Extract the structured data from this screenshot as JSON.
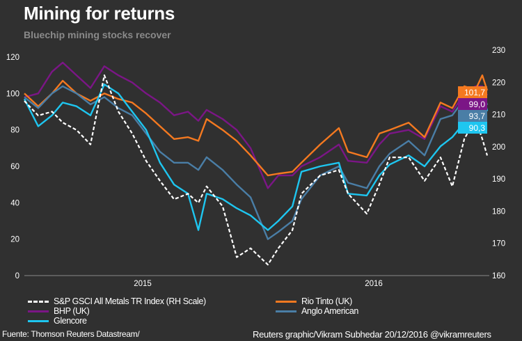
{
  "header": {
    "title": "Mining for returns",
    "subtitle": "Bluechip mining stocks recover"
  },
  "footer": {
    "source": "Fuente: Thomson Reuters Datastream/",
    "credit": "Reuters graphic/Vikram Subhedar 20/12/2016  @vikramreuters"
  },
  "chart_data": {
    "type": "line",
    "title": "Mining for returns",
    "subtitle": "Bluechip mining stocks recover",
    "xlabel": "",
    "ylabel": "",
    "x_unit": "decimal year",
    "xlim": [
      2014.988,
      2016.991
    ],
    "x_ticks": [
      {
        "value": 2015.5,
        "label": "2015"
      },
      {
        "value": 2016.5,
        "label": "2016"
      }
    ],
    "ylim_left": [
      0,
      120
    ],
    "y_ticks_left": [
      0,
      20,
      40,
      60,
      80,
      100,
      120
    ],
    "ylim_right": [
      160,
      230
    ],
    "y_ticks_right": [
      160,
      170,
      180,
      190,
      200,
      210,
      220,
      230
    ],
    "grid": false,
    "legend_position": "bottom",
    "x": [
      2014.988,
      2015.048,
      2015.108,
      2015.154,
      2015.214,
      2015.274,
      2015.334,
      2015.395,
      2015.455,
      2015.515,
      2015.575,
      2015.636,
      2015.696,
      2015.741,
      2015.777,
      2015.846,
      2015.907,
      2015.967,
      2016.042,
      2016.087,
      2016.148,
      2016.187,
      2016.268,
      2016.349,
      2016.389,
      2016.47,
      2016.524,
      2016.569,
      2016.651,
      2016.72,
      2016.789,
      2016.84,
      2016.892,
      2016.94,
      2016.97,
      2016.991
    ],
    "series": [
      {
        "name": "S&P GSCI All Metals TR Index (RH Scale)",
        "axis": "right",
        "color": "#ffffff",
        "dashed": true,
        "values": [
          214.2,
          209.7,
          210.9,
          207.5,
          205.2,
          200.7,
          222.2,
          210.9,
          204.1,
          195.6,
          189.4,
          183.7,
          185.4,
          182.6,
          187.7,
          181.5,
          165.7,
          168.5,
          163.4,
          168.5,
          174.1,
          185.4,
          191.1,
          192.8,
          185.4,
          179.2,
          188.3,
          196.7,
          196.7,
          189.4,
          196.7,
          187.7,
          202.4,
          208.6,
          202.4,
          197.3
        ]
      },
      {
        "name": "BHP (UK)",
        "axis": "left",
        "color": "#7b1686",
        "values": [
          98,
          100,
          112,
          117,
          110,
          103,
          115,
          110,
          106,
          100,
          95,
          88,
          90,
          85,
          91,
          86,
          80,
          70,
          48,
          55,
          55,
          60,
          65,
          72,
          63,
          62,
          72,
          78,
          80,
          75,
          93,
          90,
          100,
          104,
          104,
          99.0
        ]
      },
      {
        "name": "Glencore",
        "axis": "left",
        "color": "#1ec6f0",
        "values": [
          97,
          82,
          88,
          95,
          93,
          88,
          105,
          100,
          90,
          80,
          62,
          50,
          45,
          25,
          45,
          42,
          37,
          33,
          25,
          30,
          38,
          57,
          60,
          62,
          45,
          44,
          55,
          61,
          66,
          60,
          71,
          76,
          84,
          92,
          102,
          90.3
        ]
      },
      {
        "name": "Rio Tinto (UK)",
        "axis": "left",
        "color": "#f47920",
        "values": [
          100,
          93,
          100,
          107,
          100,
          96,
          100,
          97,
          95,
          89,
          82,
          75,
          76,
          74,
          86,
          80,
          74,
          66,
          55,
          56,
          57,
          62,
          72,
          81,
          68,
          65,
          78,
          80,
          84,
          76,
          95,
          92,
          104,
          102,
          110,
          101.7
        ]
      },
      {
        "name": "Anglo American",
        "axis": "left",
        "color": "#4a7ea6",
        "values": [
          98,
          92,
          100,
          104,
          100,
          94,
          98,
          92,
          88,
          78,
          68,
          62,
          62,
          58,
          65,
          58,
          50,
          43,
          20,
          24,
          30,
          42,
          55,
          60,
          51,
          48,
          60,
          67,
          74,
          66,
          86,
          88,
          97,
          100,
          101,
          93.7
        ]
      }
    ],
    "end_labels": [
      {
        "series": "Rio Tinto (UK)",
        "text": "101,7",
        "color": "#f47920"
      },
      {
        "series": "BHP (UK)",
        "text": "99,0",
        "color": "#7b1686"
      },
      {
        "series": "Anglo American",
        "text": "93,7",
        "color": "#4a7ea6"
      },
      {
        "series": "Glencore",
        "text": "90,3",
        "color": "#1ec6f0"
      }
    ]
  }
}
